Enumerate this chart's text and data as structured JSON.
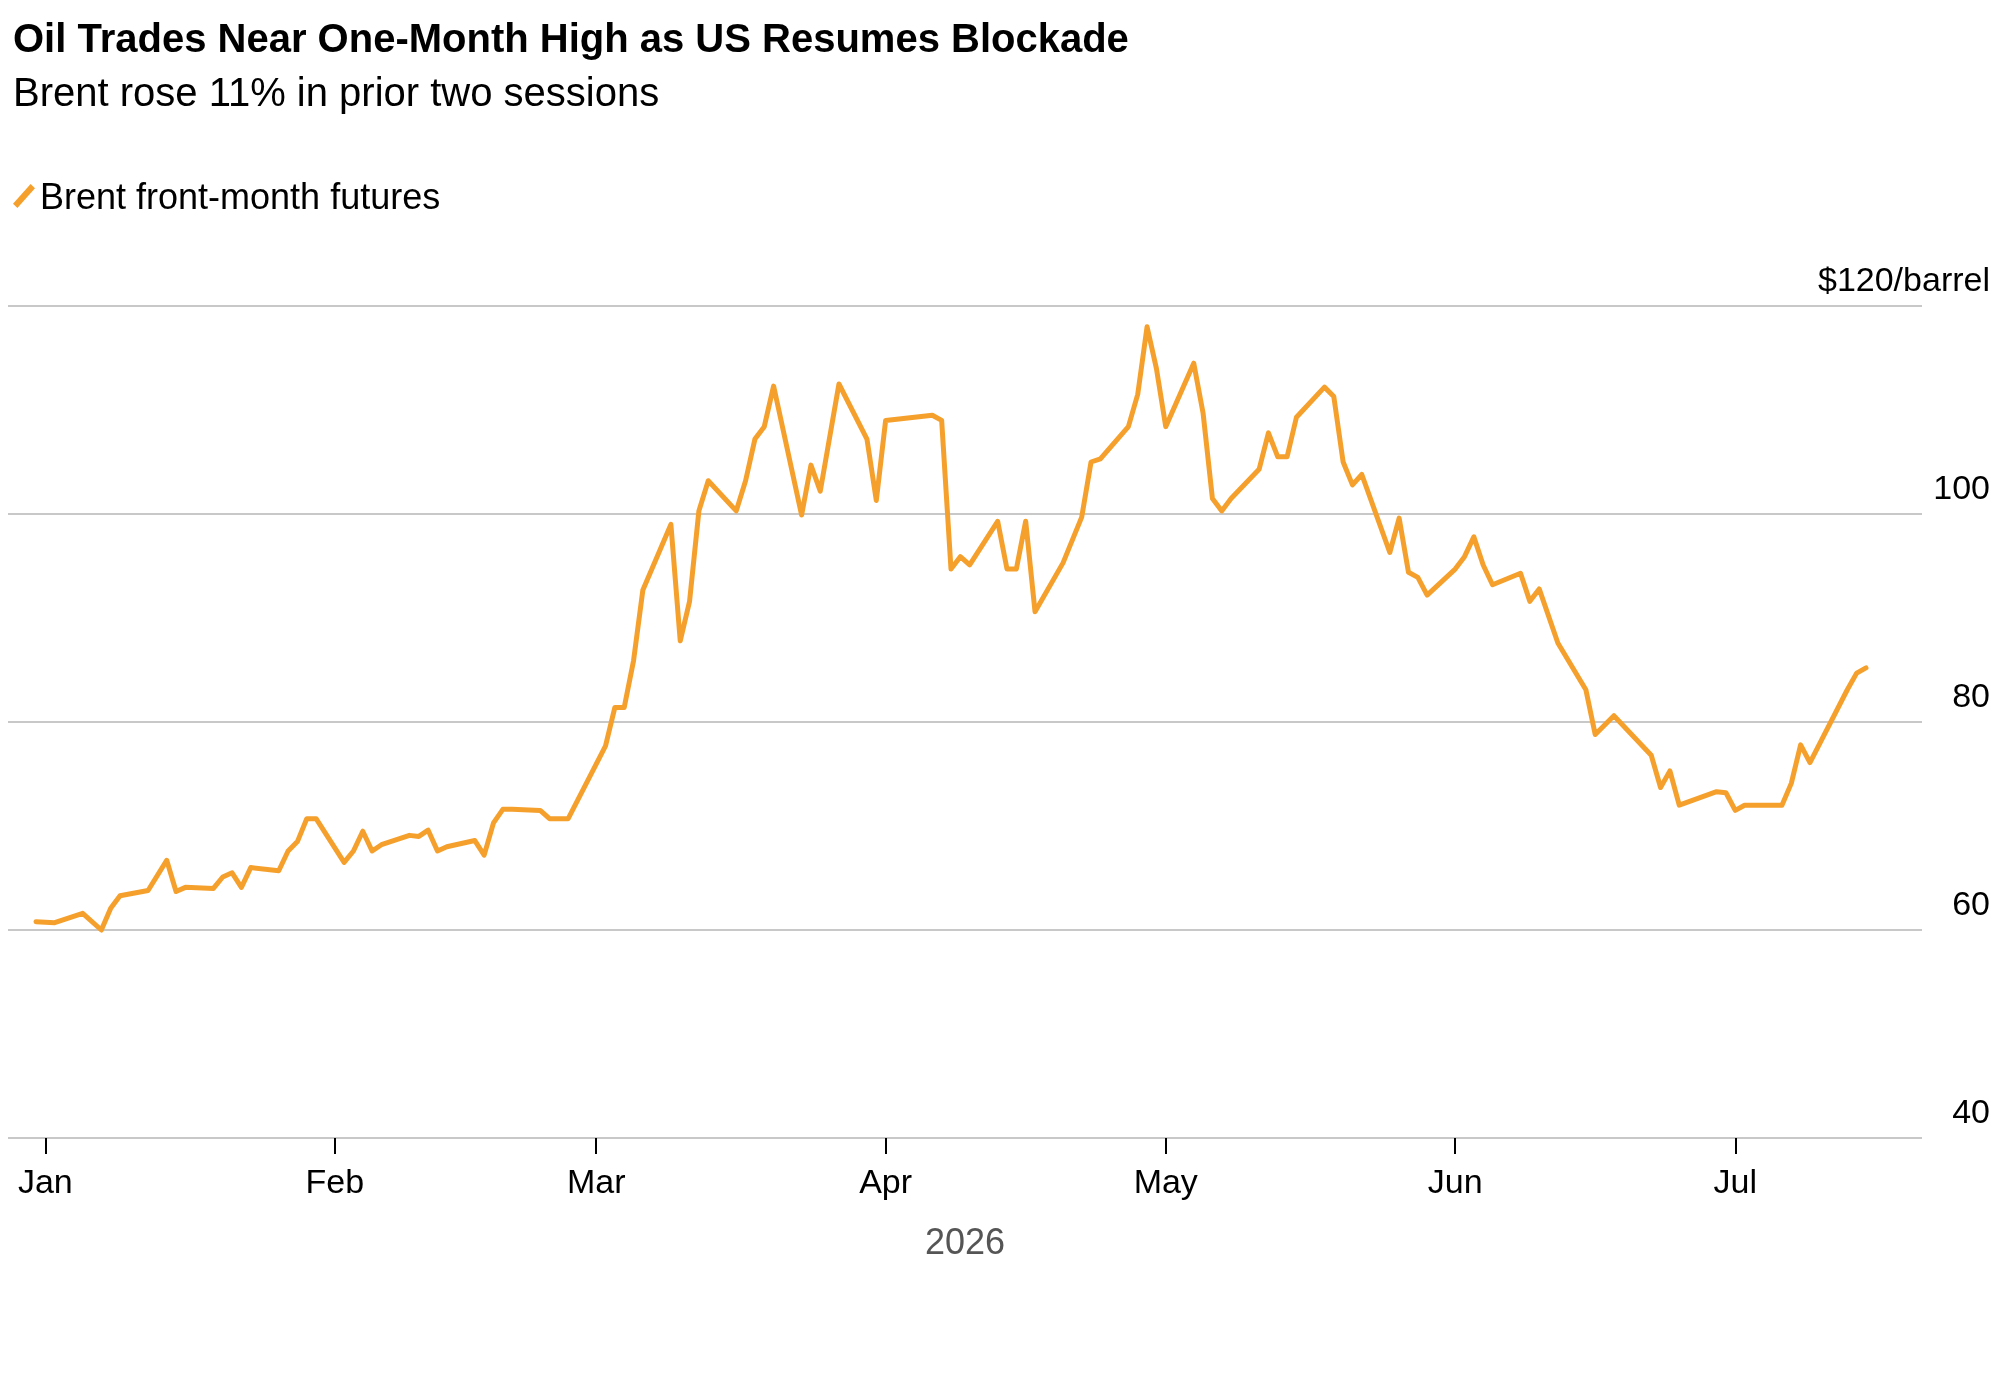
{
  "chart_data": {
    "type": "line",
    "title": "Oil Trades Near One-Month High as US Resumes Blockade",
    "subtitle": "Brent rose 11% in prior two sessions",
    "xlabel": "2026",
    "x": [
      "2025-12-31",
      "2026-01-02",
      "2026-01-05",
      "2026-01-07",
      "2026-01-08",
      "2026-01-09",
      "2026-01-12",
      "2026-01-14",
      "2026-01-15",
      "2026-01-16",
      "2026-01-19",
      "2026-01-20",
      "2026-01-21",
      "2026-01-22",
      "2026-01-23",
      "2026-01-26",
      "2026-01-27",
      "2026-01-28",
      "2026-01-29",
      "2026-01-30",
      "2026-02-02",
      "2026-02-03",
      "2026-02-04",
      "2026-02-05",
      "2026-02-06",
      "2026-02-09",
      "2026-02-10",
      "2026-02-11",
      "2026-02-12",
      "2026-02-13",
      "2026-02-16",
      "2026-02-17",
      "2026-02-18",
      "2026-02-19",
      "2026-02-20",
      "2026-02-23",
      "2026-02-24",
      "2026-02-26",
      "2026-03-02",
      "2026-03-03",
      "2026-03-04",
      "2026-03-05",
      "2026-03-06",
      "2026-03-09",
      "2026-03-10",
      "2026-03-11",
      "2026-03-12",
      "2026-03-13",
      "2026-03-16",
      "2026-03-17",
      "2026-03-18",
      "2026-03-19",
      "2026-03-20",
      "2026-03-23",
      "2026-03-24",
      "2026-03-25",
      "2026-03-27",
      "2026-03-30",
      "2026-03-31",
      "2026-04-01",
      "2026-04-06",
      "2026-04-07",
      "2026-04-08",
      "2026-04-09",
      "2026-04-10",
      "2026-04-13",
      "2026-04-14",
      "2026-04-15",
      "2026-04-16",
      "2026-04-17",
      "2026-04-20",
      "2026-04-22",
      "2026-04-23",
      "2026-04-24",
      "2026-04-27",
      "2026-04-28",
      "2026-04-29",
      "2026-04-30",
      "2026-05-01",
      "2026-05-04",
      "2026-05-05",
      "2026-05-06",
      "2026-05-07",
      "2026-05-08",
      "2026-05-11",
      "2026-05-12",
      "2026-05-13",
      "2026-05-14",
      "2026-05-15",
      "2026-05-18",
      "2026-05-19",
      "2026-05-20",
      "2026-05-21",
      "2026-05-22",
      "2026-05-25",
      "2026-05-26",
      "2026-05-27",
      "2026-05-28",
      "2026-05-29",
      "2026-06-01",
      "2026-06-02",
      "2026-06-03",
      "2026-06-04",
      "2026-06-05",
      "2026-06-08",
      "2026-06-09",
      "2026-06-10",
      "2026-06-12",
      "2026-06-15",
      "2026-06-16",
      "2026-06-18",
      "2026-06-22",
      "2026-06-23",
      "2026-06-24",
      "2026-06-25",
      "2026-06-29",
      "2026-06-30",
      "2026-07-01",
      "2026-07-02",
      "2026-07-06",
      "2026-07-07",
      "2026-07-08",
      "2026-07-09",
      "2026-07-13",
      "2026-07-14",
      "2026-07-15"
    ],
    "series": [
      {
        "name": "Brent front-month futures",
        "color": "#f5a02c",
        "values": [
          60.8,
          60.7,
          61.6,
          60.0,
          62.1,
          63.3,
          63.8,
          66.7,
          63.7,
          64.1,
          64.0,
          65.1,
          65.5,
          64.1,
          66.0,
          65.7,
          67.6,
          68.5,
          70.7,
          70.7,
          66.5,
          67.6,
          69.5,
          67.6,
          68.2,
          69.1,
          69.0,
          69.6,
          67.6,
          68.0,
          68.6,
          67.2,
          70.3,
          71.6,
          71.6,
          71.5,
          70.7,
          70.7,
          77.7,
          81.4,
          81.4,
          85.9,
          92.7,
          99.0,
          87.8,
          91.6,
          100.3,
          103.2,
          100.3,
          103.2,
          107.2,
          108.4,
          112.3,
          99.9,
          104.7,
          102.2,
          112.5,
          107.2,
          101.3,
          109.0,
          109.5,
          109.0,
          94.7,
          95.9,
          95.1,
          99.3,
          94.7,
          94.7,
          99.3,
          90.6,
          95.3,
          99.7,
          105.0,
          105.3,
          108.4,
          111.5,
          118.0,
          114.0,
          108.4,
          114.5,
          109.7,
          101.5,
          100.3,
          101.5,
          104.3,
          107.8,
          105.5,
          105.5,
          109.3,
          112.2,
          111.3,
          105.0,
          102.8,
          103.8,
          96.3,
          99.6,
          94.4,
          93.9,
          92.2,
          94.7,
          95.9,
          97.8,
          95.1,
          93.2,
          94.3,
          91.6,
          92.8,
          87.6,
          83.1,
          78.8,
          80.6,
          76.8,
          73.7,
          75.3,
          72.0,
          73.3,
          73.2,
          71.5,
          72.0,
          72.0,
          74.1,
          77.8,
          76.1,
          83.1,
          84.7,
          85.2
        ]
      }
    ],
    "xlim": [
      "2025-12-28",
      "2026-07-21"
    ],
    "xticks": [
      {
        "value": "2026-01-01",
        "label": "Jan"
      },
      {
        "value": "2026-02-01",
        "label": "Feb"
      },
      {
        "value": "2026-03-01",
        "label": "Mar"
      },
      {
        "value": "2026-04-01",
        "label": "Apr"
      },
      {
        "value": "2026-05-01",
        "label": "May"
      },
      {
        "value": "2026-06-01",
        "label": "Jun"
      },
      {
        "value": "2026-07-01",
        "label": "Jul"
      }
    ],
    "ylim": [
      40,
      120
    ],
    "yticks": [
      40,
      60,
      80,
      100,
      {
        "value": 120,
        "label": "$120/barrel"
      }
    ],
    "grid": "y",
    "legend": "top left",
    "line_style": "solid",
    "marker": "none"
  }
}
